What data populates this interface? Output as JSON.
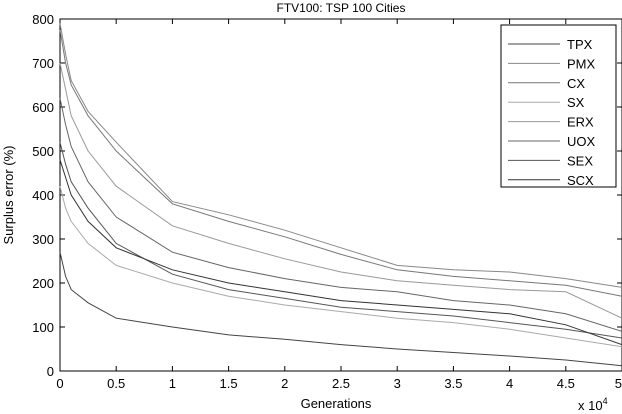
{
  "chart_data": {
    "type": "line",
    "title": "FTV100: TSP 100 Cities",
    "xlabel": "Generations",
    "ylabel": "Surplus error (%)",
    "x_multiplier_label": "x 10",
    "x_multiplier_exponent": "4",
    "xlim": [
      0,
      5
    ],
    "ylim": [
      0,
      800
    ],
    "xticks": [
      0,
      0.5,
      1,
      1.5,
      2,
      2.5,
      3,
      3.5,
      4,
      4.5,
      5
    ],
    "xtick_labels": [
      "0",
      "0.5",
      "1",
      "1.5",
      "2",
      "2.5",
      "3",
      "3.5",
      "4",
      "4.5",
      "5"
    ],
    "yticks": [
      0,
      100,
      200,
      300,
      400,
      500,
      600,
      700,
      800
    ],
    "ytick_labels": [
      "0",
      "100",
      "200",
      "300",
      "400",
      "500",
      "600",
      "700",
      "800"
    ],
    "legend_position": "top-right",
    "x": [
      0,
      0.05,
      0.1,
      0.25,
      0.5,
      1,
      1.5,
      2,
      2.5,
      3,
      3.5,
      4,
      4.5,
      5
    ],
    "series": [
      {
        "name": "TPX",
        "color": "#444444",
        "values": [
          270,
          215,
          185,
          155,
          120,
          100,
          82,
          72,
          60,
          50,
          42,
          34,
          25,
          12
        ]
      },
      {
        "name": "PMX",
        "color": "#888888",
        "values": [
          790,
          720,
          660,
          590,
          520,
          385,
          355,
          320,
          280,
          240,
          230,
          225,
          210,
          190
        ]
      },
      {
        "name": "CX",
        "color": "#777777",
        "values": [
          775,
          700,
          650,
          580,
          500,
          380,
          340,
          305,
          265,
          230,
          215,
          205,
          195,
          170
        ]
      },
      {
        "name": "SX",
        "color": "#aaaaaa",
        "values": [
          420,
          370,
          340,
          290,
          240,
          200,
          170,
          150,
          135,
          120,
          110,
          95,
          75,
          55
        ]
      },
      {
        "name": "ERX",
        "color": "#999999",
        "values": [
          700,
          640,
          580,
          500,
          420,
          330,
          290,
          255,
          225,
          205,
          195,
          185,
          180,
          120
        ]
      },
      {
        "name": "UOX",
        "color": "#666666",
        "values": [
          620,
          560,
          510,
          430,
          350,
          270,
          235,
          210,
          190,
          180,
          160,
          150,
          130,
          90
        ]
      },
      {
        "name": "SEX",
        "color": "#555555",
        "values": [
          520,
          470,
          430,
          370,
          290,
          220,
          185,
          165,
          145,
          135,
          125,
          110,
          95,
          75
        ]
      },
      {
        "name": "SCX",
        "color": "#333333",
        "values": [
          480,
          440,
          400,
          340,
          280,
          230,
          200,
          180,
          160,
          150,
          140,
          130,
          105,
          60
        ]
      }
    ]
  }
}
